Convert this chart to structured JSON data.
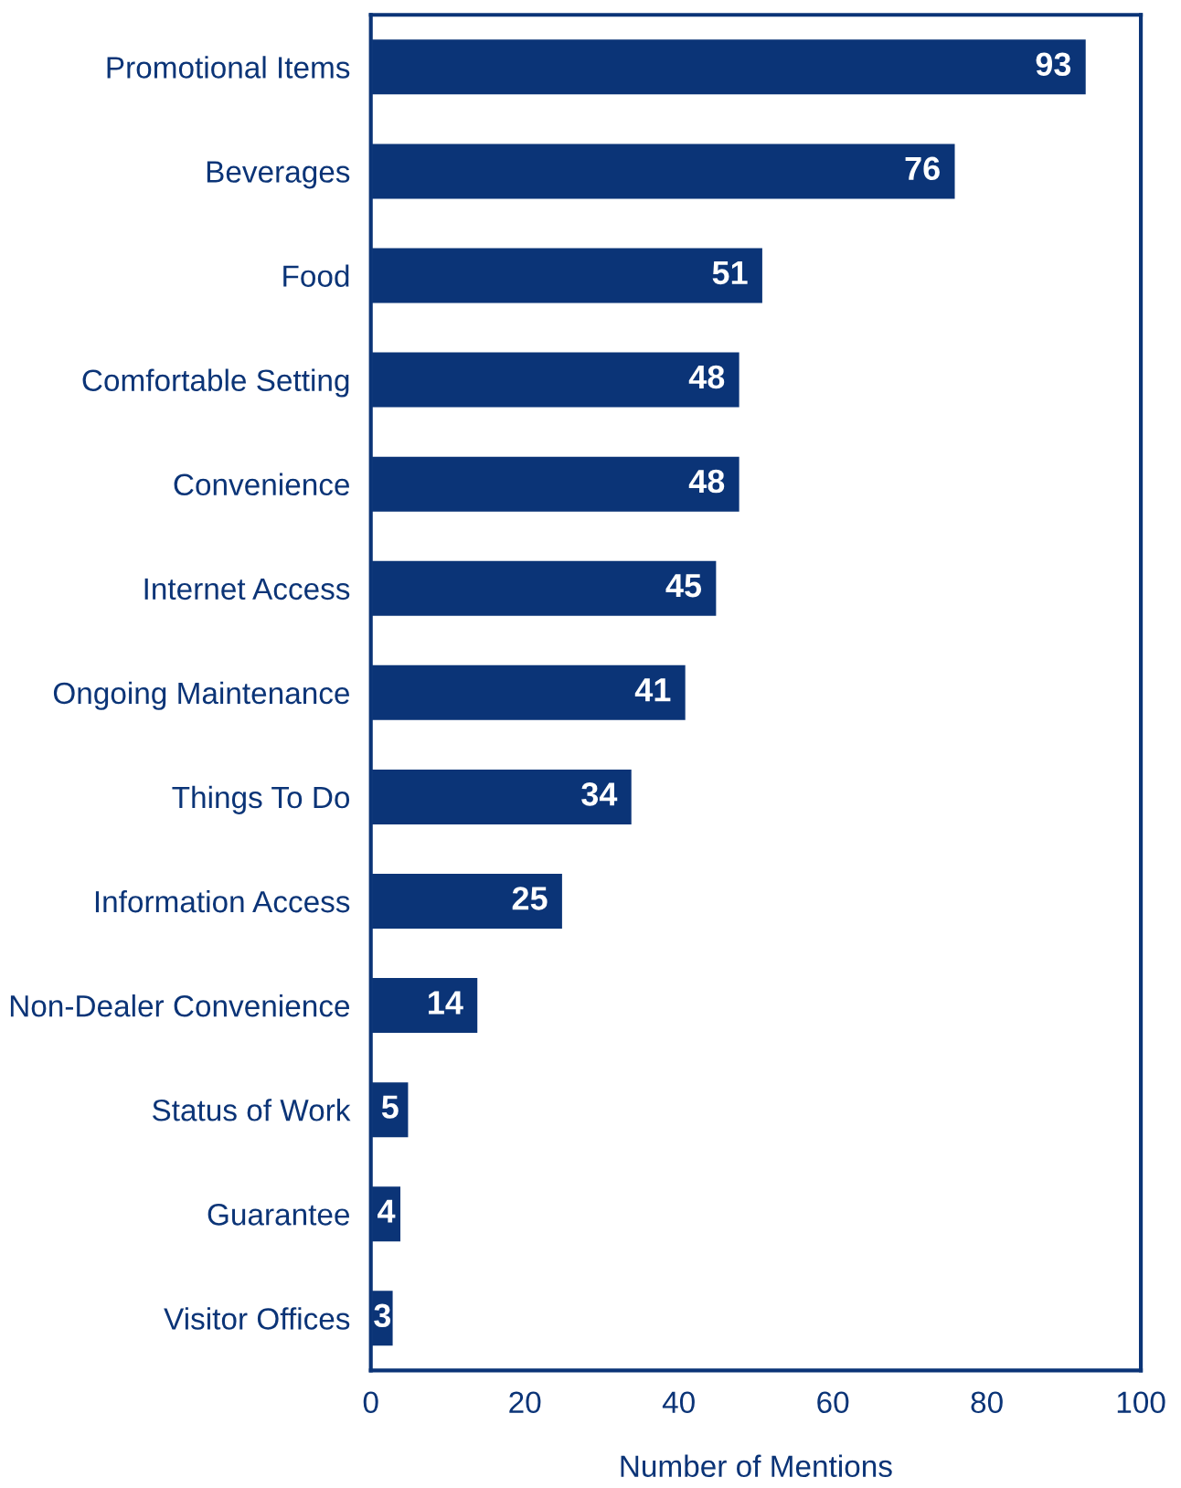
{
  "chart_data": {
    "type": "bar",
    "orientation": "horizontal",
    "xlabel": "Number of Mentions",
    "categories": [
      "Promotional Items",
      "Beverages",
      "Food",
      "Comfortable Setting",
      "Convenience",
      "Internet Access",
      "Ongoing Maintenance",
      "Things To Do",
      "Information Access",
      "Non-Dealer Convenience",
      "Status of Work",
      "Guarantee",
      "Visitor Offices"
    ],
    "values": [
      93,
      76,
      51,
      48,
      48,
      45,
      41,
      34,
      25,
      14,
      5,
      4,
      3
    ],
    "color": "#0b3477",
    "data_labels": true,
    "xlim": [
      0,
      100
    ],
    "xticks": [
      0,
      20,
      40,
      60,
      80,
      100
    ],
    "grid": false,
    "legend": false
  }
}
